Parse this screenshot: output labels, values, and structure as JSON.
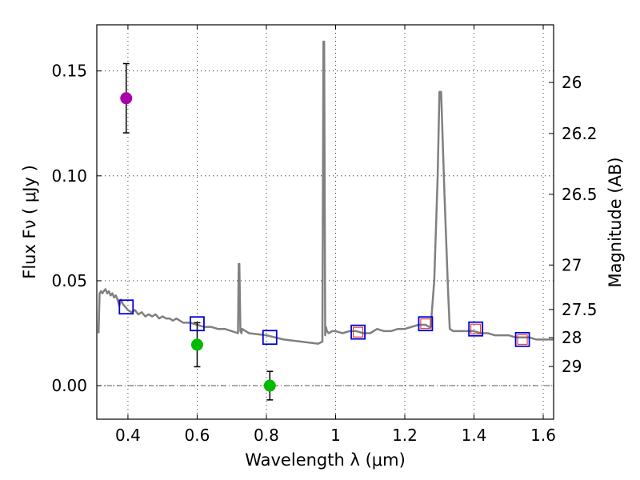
{
  "chart_data": {
    "type": "scatter",
    "xlabel": "Wavelength  λ (μm)",
    "ylabel": "Flux  Fν  ( μJy )",
    "y2label": "Magnitude (AB)",
    "xlim": [
      0.31,
      1.63
    ],
    "ylim": [
      -0.016,
      0.172
    ],
    "grid": true,
    "x_ticks": [
      0.4,
      0.6,
      0.8,
      1.0,
      1.2,
      1.4,
      1.6
    ],
    "x_tick_labels": [
      "0.4",
      "0.6",
      "0.8",
      "1",
      "1.2",
      "1.4",
      "1.6"
    ],
    "y_ticks": [
      0.0,
      0.05,
      0.1,
      0.15
    ],
    "y_tick_labels": [
      "0.00",
      "0.05",
      "0.10",
      "0.15"
    ],
    "mag_ticks": [
      {
        "label": "26",
        "flux": 0.1445
      },
      {
        "label": "26.2",
        "flux": 0.1202
      },
      {
        "label": "26.5",
        "flux": 0.0912
      },
      {
        "label": "27",
        "flux": 0.0575
      },
      {
        "label": "27.5",
        "flux": 0.0363
      },
      {
        "label": "28",
        "flux": 0.0229
      },
      {
        "label": "29",
        "flux": 0.0091
      }
    ],
    "zero_line": {
      "y": 0.0,
      "style": "dash-dot"
    },
    "sed_model": {
      "color": "#808080",
      "x": [
        0.315,
        0.318,
        0.322,
        0.326,
        0.33,
        0.335,
        0.34,
        0.345,
        0.35,
        0.355,
        0.36,
        0.365,
        0.37,
        0.375,
        0.38,
        0.385,
        0.39,
        0.395,
        0.4,
        0.41,
        0.42,
        0.43,
        0.44,
        0.45,
        0.46,
        0.47,
        0.48,
        0.49,
        0.5,
        0.51,
        0.52,
        0.53,
        0.54,
        0.55,
        0.56,
        0.58,
        0.6,
        0.62,
        0.64,
        0.66,
        0.68,
        0.7,
        0.718,
        0.72,
        0.722,
        0.725,
        0.728,
        0.73,
        0.75,
        0.8,
        0.85,
        0.9,
        0.95,
        0.962,
        0.965,
        0.967,
        0.97,
        0.972,
        0.975,
        0.98,
        0.99,
        1.0,
        1.02,
        1.04,
        1.06,
        1.08,
        1.1,
        1.12,
        1.14,
        1.16,
        1.18,
        1.2,
        1.22,
        1.24,
        1.26,
        1.27,
        1.275,
        1.285,
        1.295,
        1.3,
        1.305,
        1.315,
        1.325,
        1.33,
        1.34,
        1.36,
        1.38,
        1.4,
        1.42,
        1.44,
        1.46,
        1.48,
        1.5,
        1.52,
        1.54,
        1.56,
        1.58,
        1.6,
        1.63
      ],
      "y": [
        0.025,
        0.044,
        0.045,
        0.044,
        0.045,
        0.046,
        0.044,
        0.045,
        0.043,
        0.044,
        0.042,
        0.043,
        0.041,
        0.038,
        0.041,
        0.039,
        0.038,
        0.037,
        0.036,
        0.035,
        0.036,
        0.034,
        0.035,
        0.033,
        0.034,
        0.033,
        0.034,
        0.032,
        0.033,
        0.032,
        0.032,
        0.031,
        0.032,
        0.031,
        0.03,
        0.03,
        0.029,
        0.028,
        0.028,
        0.027,
        0.027,
        0.026,
        0.025,
        0.058,
        0.058,
        0.026,
        0.025,
        0.027,
        0.025,
        0.024,
        0.022,
        0.021,
        0.02,
        0.021,
        0.164,
        0.164,
        0.024,
        0.028,
        0.026,
        0.025,
        0.026,
        0.026,
        0.025,
        0.026,
        0.026,
        0.025,
        0.025,
        0.027,
        0.026,
        0.026,
        0.027,
        0.027,
        0.028,
        0.029,
        0.029,
        0.028,
        0.028,
        0.05,
        0.1,
        0.14,
        0.14,
        0.09,
        0.045,
        0.027,
        0.026,
        0.026,
        0.026,
        0.026,
        0.025,
        0.025,
        0.024,
        0.024,
        0.024,
        0.023,
        0.023,
        0.023,
        0.022,
        0.022,
        0.022
      ]
    },
    "series": [
      {
        "name": "observed (purple)",
        "marker": "circle",
        "color": "#aa00aa",
        "points": [
          {
            "x": 0.395,
            "y": 0.137,
            "err": 0.0165
          }
        ]
      },
      {
        "name": "observed (green)",
        "marker": "circle",
        "color": "#00bb00",
        "points": [
          {
            "x": 0.6,
            "y": 0.0195,
            "err": 0.0105
          },
          {
            "x": 0.81,
            "y": 0.0,
            "err": 0.0068
          }
        ]
      },
      {
        "name": "model bandpass (blue squares)",
        "marker": "square",
        "color": "#0000dd",
        "points": [
          {
            "x": 0.395,
            "y": 0.0375
          },
          {
            "x": 0.6,
            "y": 0.0295
          },
          {
            "x": 0.81,
            "y": 0.023
          },
          {
            "x": 1.065,
            "y": 0.0255
          },
          {
            "x": 1.26,
            "y": 0.0295
          },
          {
            "x": 1.405,
            "y": 0.027
          },
          {
            "x": 1.54,
            "y": 0.022
          }
        ]
      },
      {
        "name": "model bandpass (red squares)",
        "marker": "square-small",
        "color": "#dd2222",
        "points": [
          {
            "x": 1.065,
            "y": 0.0255
          },
          {
            "x": 1.26,
            "y": 0.0295
          },
          {
            "x": 1.405,
            "y": 0.027
          },
          {
            "x": 1.54,
            "y": 0.022
          }
        ]
      }
    ]
  }
}
